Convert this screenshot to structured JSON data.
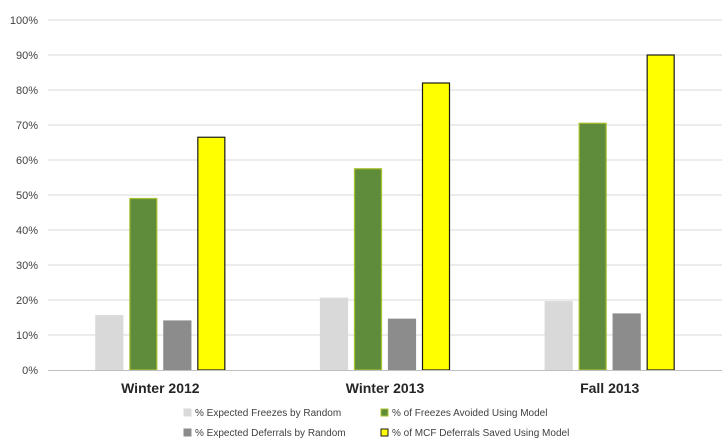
{
  "chart_data": {
    "type": "bar",
    "categories": [
      "Winter 2012",
      "Winter 2013",
      "Fall 2013"
    ],
    "series": [
      {
        "name": "% Expected Freezes by Random",
        "values": [
          0.155,
          0.205,
          0.195
        ],
        "color": "#d9d9d9",
        "stroke": "#d9d9d9"
      },
      {
        "name": "% of Freezes Avoided Using Model",
        "values": [
          0.49,
          0.575,
          0.705
        ],
        "color": "#5e8c3a",
        "stroke": "#a8c030"
      },
      {
        "name": "% Expected Deferrals by Random",
        "values": [
          0.14,
          0.145,
          0.16
        ],
        "color": "#8c8c8c",
        "stroke": "#8c8c8c"
      },
      {
        "name": "% of MCF Deferrals Saved Using Model",
        "values": [
          0.665,
          0.82,
          0.9
        ],
        "color": "#ffff00",
        "stroke": "#1a1a1a"
      }
    ],
    "ylim": [
      0,
      1
    ],
    "yticks": [
      "0%",
      "10%",
      "20%",
      "30%",
      "40%",
      "50%",
      "60%",
      "70%",
      "80%",
      "90%",
      "100%"
    ],
    "grid": true,
    "legend_position": "bottom"
  }
}
